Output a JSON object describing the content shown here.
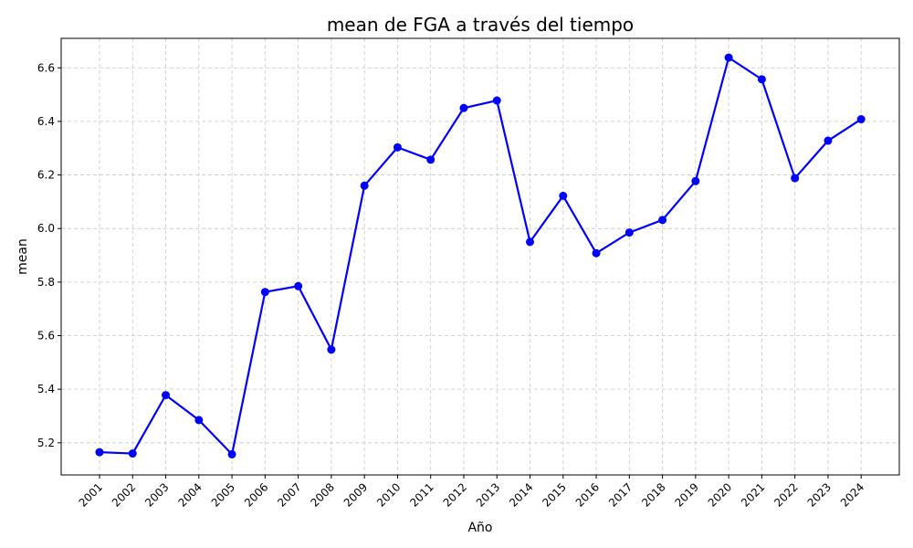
{
  "chart_data": {
    "type": "line",
    "title": "mean de FGA a través del tiempo",
    "xlabel": "Año",
    "ylabel": "mean",
    "categories": [
      "2001",
      "2002",
      "2003",
      "2004",
      "2005",
      "2006",
      "2007",
      "2008",
      "2009",
      "2010",
      "2011",
      "2012",
      "2013",
      "2014",
      "2015",
      "2016",
      "2017",
      "2018",
      "2019",
      "2020",
      "2021",
      "2022",
      "2023",
      "2024"
    ],
    "series": [
      {
        "values": [
          5.165,
          5.16,
          5.378,
          5.285,
          5.157,
          5.763,
          5.785,
          5.548,
          6.16,
          6.303,
          6.257,
          6.45,
          6.478,
          5.95,
          6.122,
          5.908,
          5.985,
          6.032,
          6.177,
          6.638,
          6.557,
          6.188,
          6.328,
          6.408
        ],
        "color": "#0000ff",
        "marker": "circle"
      }
    ],
    "ylim": [
      5.08,
      6.71
    ],
    "yticks": [
      5.2,
      5.4,
      5.6,
      5.8,
      6.0,
      6.2,
      6.4,
      6.6
    ],
    "ytick_labels": [
      "5.2",
      "5.4",
      "5.6",
      "5.8",
      "6.0",
      "6.2",
      "6.4",
      "6.6"
    ],
    "grid": true,
    "x_tick_rotation_deg": 45
  }
}
